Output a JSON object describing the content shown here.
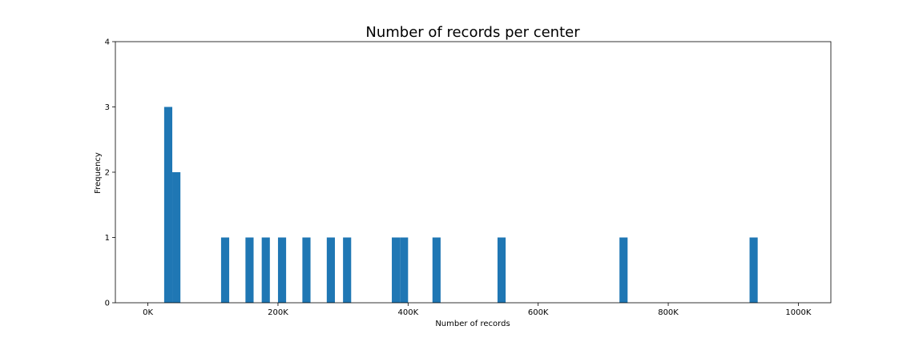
{
  "chart_data": {
    "type": "bar",
    "title": "Number of records per center",
    "xlabel": "Number of records",
    "ylabel": "Frequency",
    "xlim": [
      -50000,
      1050000
    ],
    "ylim": [
      0,
      4
    ],
    "x_ticks": [
      {
        "value": 0,
        "label": "0K"
      },
      {
        "value": 200000,
        "label": "200K"
      },
      {
        "value": 400000,
        "label": "400K"
      },
      {
        "value": 600000,
        "label": "600K"
      },
      {
        "value": 800000,
        "label": "800K"
      },
      {
        "value": 1000000,
        "label": "1000K"
      }
    ],
    "y_ticks": [
      {
        "value": 0,
        "label": "0"
      },
      {
        "value": 1,
        "label": "1"
      },
      {
        "value": 2,
        "label": "2"
      },
      {
        "value": 3,
        "label": "3"
      },
      {
        "value": 4,
        "label": "4"
      }
    ],
    "color": "#1f77b4",
    "bin_width": 12500,
    "bins": [
      {
        "x": 25000,
        "count": 3
      },
      {
        "x": 37500,
        "count": 2
      },
      {
        "x": 112500,
        "count": 1
      },
      {
        "x": 150000,
        "count": 1
      },
      {
        "x": 175000,
        "count": 1
      },
      {
        "x": 200000,
        "count": 1
      },
      {
        "x": 237500,
        "count": 1
      },
      {
        "x": 275000,
        "count": 1
      },
      {
        "x": 300000,
        "count": 1
      },
      {
        "x": 375000,
        "count": 1
      },
      {
        "x": 387500,
        "count": 1
      },
      {
        "x": 437500,
        "count": 1
      },
      {
        "x": 537500,
        "count": 1
      },
      {
        "x": 725000,
        "count": 1
      },
      {
        "x": 925000,
        "count": 1
      }
    ]
  }
}
